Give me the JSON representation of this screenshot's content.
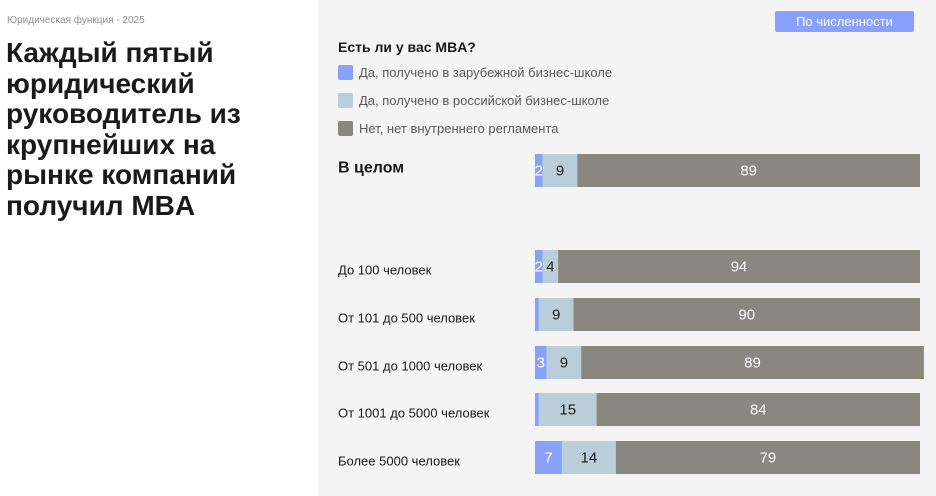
{
  "header": {
    "source": "Юридическая функция - 2025",
    "title_lines": [
      "Каждый пятый",
      "юридический",
      "руководитель из",
      "крупнейших на",
      "рынке компаний",
      "получил MBA"
    ],
    "toggle_label": "По численности"
  },
  "chart_data": {
    "type": "bar",
    "orientation": "horizontal",
    "stacked": true,
    "title": "Есть ли у вас MBA?",
    "xlim": [
      0,
      100
    ],
    "categories": [
      "В целом",
      "До 100 человек",
      "От 101 до 500 человек",
      "От 501 до 1000 человек",
      "От 1001 до 5000 человек",
      "Более 5000 человек"
    ],
    "series": [
      {
        "name": "Да, получено в зарубежной бизнес-школе",
        "color": "#88a2fb",
        "values": [
          2,
          2,
          1,
          3,
          1,
          7
        ],
        "labels": [
          "2",
          "2",
          "",
          "3",
          "",
          "7"
        ]
      },
      {
        "name": "Да, получено в российской бизнес-школе",
        "color": "#b9ced8",
        "values": [
          9,
          4,
          9,
          9,
          15,
          14
        ],
        "labels": [
          "9",
          "4",
          "9",
          "9",
          "15",
          "14"
        ]
      },
      {
        "name": "Нет, нет внутреннего регламента",
        "color": "#8a8680",
        "values": [
          89,
          94,
          90,
          89,
          84,
          79
        ],
        "labels": [
          "89",
          "94",
          "90",
          "89",
          "84",
          "79"
        ]
      }
    ]
  }
}
